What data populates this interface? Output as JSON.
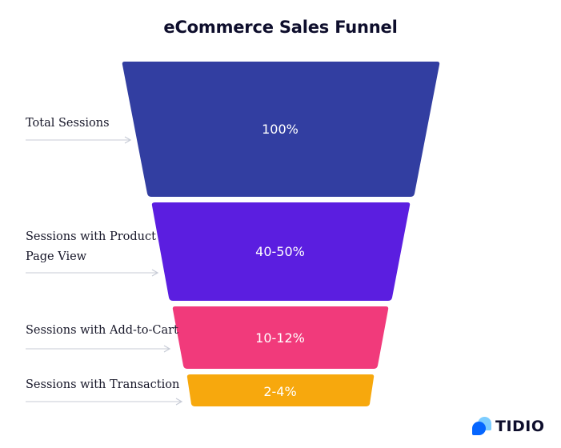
{
  "title": "eCommerce Sales Funnel",
  "stages": [
    {
      "label": "Total Sessions",
      "value": "100%",
      "color": "#323ea1"
    },
    {
      "label": "Sessions with Product\nPage View",
      "value": "40-50%",
      "color": "#5b1ee0"
    },
    {
      "label": "Sessions with Add-to-Cart",
      "value": "10-12%",
      "color": "#f13a7b"
    },
    {
      "label": "Sessions with Transaction",
      "value": "2-4%",
      "color": "#f7a80d"
    }
  ],
  "arrow_color": "#c7cbd6",
  "logo": {
    "text": "TIDIO",
    "icon": "tidio-chat-bubbles-icon"
  }
}
